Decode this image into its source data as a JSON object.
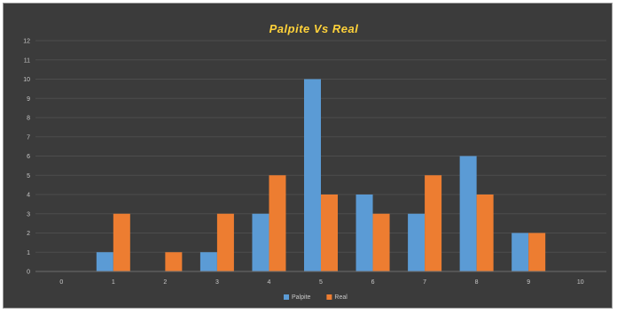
{
  "chart_data": {
    "type": "bar",
    "title": "Palpite Vs Real",
    "xlabel": "",
    "ylabel": "",
    "categories": [
      "0",
      "1",
      "2",
      "3",
      "4",
      "5",
      "6",
      "7",
      "8",
      "9",
      "10"
    ],
    "yticks": [
      "0",
      "1",
      "2",
      "3",
      "4",
      "5",
      "6",
      "7",
      "8",
      "9",
      "10",
      "11",
      "12"
    ],
    "ylim": [
      0,
      12
    ],
    "grid": true,
    "legend_position": "bottom",
    "series": [
      {
        "name": "Palpite",
        "color": "#5b9bd5",
        "values": [
          0,
          1,
          0,
          1,
          3,
          10,
          4,
          3,
          6,
          2,
          0
        ]
      },
      {
        "name": "Real",
        "color": "#ed7d31",
        "values": [
          0,
          3,
          1,
          3,
          5,
          4,
          3,
          5,
          4,
          2,
          0
        ]
      }
    ]
  }
}
